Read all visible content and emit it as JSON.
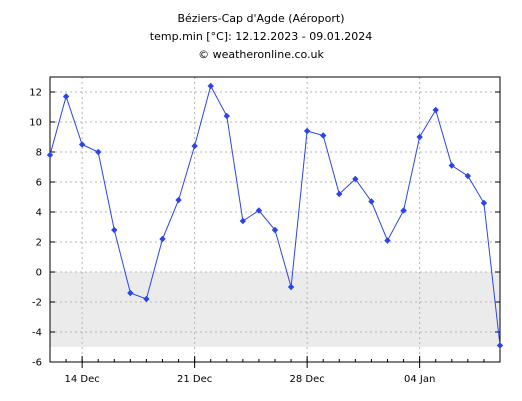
{
  "header": {
    "title": "Béziers-Cap d'Agde (Aéroport)",
    "subtitle": "temp.min [°C]: 12.12.2023 - 09.01.2024",
    "credit": "© weatheronline.co.uk"
  },
  "chart_data": {
    "type": "line",
    "title": "Béziers-Cap d'Agde (Aéroport)",
    "subtitle": "temp.min [°C]: 12.12.2023 - 09.01.2024",
    "x": [
      "2023-12-12",
      "2023-12-13",
      "2023-12-14",
      "2023-12-15",
      "2023-12-16",
      "2023-12-17",
      "2023-12-18",
      "2023-12-19",
      "2023-12-20",
      "2023-12-21",
      "2023-12-22",
      "2023-12-23",
      "2023-12-24",
      "2023-12-25",
      "2023-12-26",
      "2023-12-27",
      "2023-12-28",
      "2023-12-29",
      "2023-12-30",
      "2023-12-31",
      "2024-01-01",
      "2024-01-02",
      "2024-01-03",
      "2024-01-04",
      "2024-01-05",
      "2024-01-06",
      "2024-01-07",
      "2024-01-08",
      "2024-01-09"
    ],
    "series": [
      {
        "values": [
          7.8,
          11.7,
          8.5,
          8.0,
          2.8,
          -1.4,
          -1.8,
          2.2,
          4.8,
          8.4,
          12.4,
          10.4,
          3.4,
          4.1,
          2.8,
          -1.0,
          9.4,
          9.1,
          5.2,
          6.2,
          4.7,
          2.1,
          4.1,
          9.0,
          10.8,
          7.1,
          6.4,
          4.6,
          -4.9
        ],
        "color": "#2b45e6"
      }
    ],
    "x_ticks": [
      "14 Dec",
      "21 Dec",
      "28 Dec",
      "04 Jan"
    ],
    "x_tick_dates": [
      "2023-12-14",
      "2023-12-21",
      "2023-12-28",
      "2024-01-04"
    ],
    "y_ticks": [
      -6,
      -4,
      -2,
      0,
      2,
      4,
      6,
      8,
      10,
      12
    ],
    "ylim": [
      -6,
      13
    ],
    "xlim": [
      "2023-12-12",
      "2024-01-09"
    ],
    "grid": true,
    "below_zero_shading": {
      "from": -5,
      "to": 0,
      "color": "#ebebeb"
    }
  }
}
